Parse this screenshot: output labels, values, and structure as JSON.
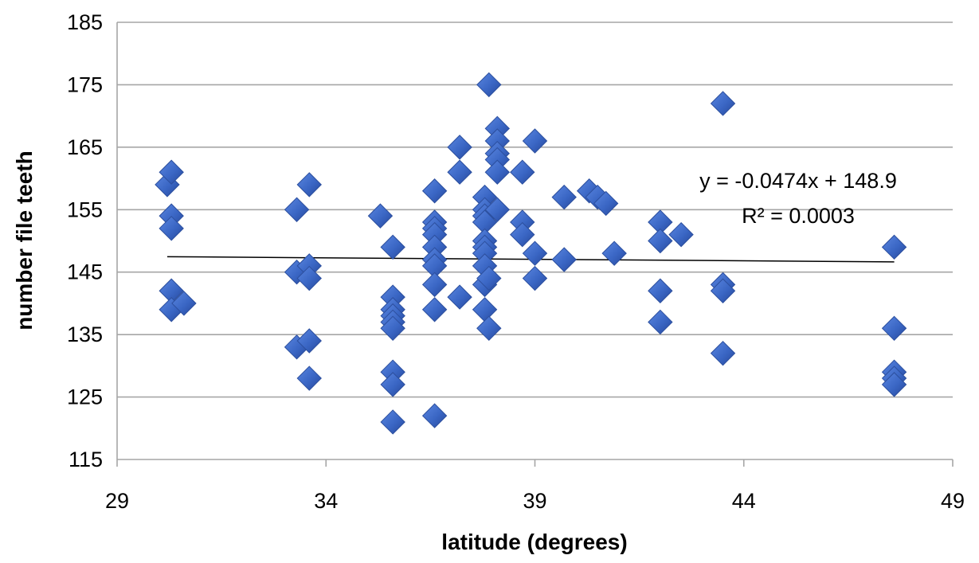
{
  "chart_data": {
    "type": "scatter",
    "title": "",
    "xlabel": "latitude (degrees)",
    "ylabel": "number file teeth",
    "xlim": [
      29,
      49
    ],
    "ylim": [
      115,
      185
    ],
    "xticks": [
      "29",
      "34",
      "39",
      "44",
      "49"
    ],
    "yticks": [
      "115",
      "125",
      "135",
      "145",
      "155",
      "165",
      "175",
      "185"
    ],
    "grid": "horizontal",
    "legend": "none",
    "marker": "diamond",
    "marker_color": "#3a66c4",
    "trendline_color": "#000000",
    "series": [
      {
        "points": [
          [
            30.2,
            159
          ],
          [
            30.3,
            161
          ],
          [
            30.3,
            154
          ],
          [
            30.3,
            152
          ],
          [
            30.3,
            142
          ],
          [
            30.3,
            139
          ],
          [
            30.6,
            140
          ],
          [
            33.3,
            155
          ],
          [
            33.3,
            145
          ],
          [
            33.3,
            133
          ],
          [
            33.6,
            159
          ],
          [
            33.6,
            146
          ],
          [
            33.6,
            144
          ],
          [
            33.6,
            134
          ],
          [
            33.6,
            128
          ],
          [
            35.3,
            154
          ],
          [
            35.6,
            149
          ],
          [
            35.6,
            141
          ],
          [
            35.6,
            139
          ],
          [
            35.6,
            138
          ],
          [
            35.6,
            137
          ],
          [
            35.6,
            136
          ],
          [
            35.6,
            129
          ],
          [
            35.6,
            127
          ],
          [
            35.6,
            121
          ],
          [
            36.6,
            158
          ],
          [
            36.6,
            153
          ],
          [
            36.6,
            152
          ],
          [
            36.6,
            151
          ],
          [
            36.6,
            149
          ],
          [
            36.6,
            147
          ],
          [
            36.6,
            146
          ],
          [
            36.6,
            143
          ],
          [
            36.6,
            139
          ],
          [
            36.6,
            122
          ],
          [
            37.2,
            165
          ],
          [
            37.2,
            161
          ],
          [
            37.2,
            141
          ],
          [
            37.8,
            157
          ],
          [
            37.8,
            155
          ],
          [
            37.8,
            154
          ],
          [
            37.8,
            153
          ],
          [
            37.8,
            150
          ],
          [
            37.8,
            149
          ],
          [
            37.8,
            148
          ],
          [
            37.8,
            146
          ],
          [
            37.8,
            143
          ],
          [
            37.8,
            139
          ],
          [
            37.9,
            175
          ],
          [
            37.9,
            144
          ],
          [
            37.9,
            136
          ],
          [
            38.1,
            168
          ],
          [
            38.1,
            166
          ],
          [
            38.1,
            164
          ],
          [
            38.1,
            163
          ],
          [
            38.1,
            161
          ],
          [
            38.1,
            155
          ],
          [
            38.7,
            161
          ],
          [
            38.7,
            153
          ],
          [
            38.7,
            151
          ],
          [
            39.0,
            166
          ],
          [
            39.0,
            148
          ],
          [
            39.0,
            144
          ],
          [
            39.7,
            157
          ],
          [
            39.7,
            147
          ],
          [
            40.3,
            158
          ],
          [
            40.5,
            157
          ],
          [
            40.7,
            156
          ],
          [
            40.9,
            148
          ],
          [
            42.0,
            153
          ],
          [
            42.0,
            150
          ],
          [
            42.0,
            142
          ],
          [
            42.0,
            137
          ],
          [
            42.5,
            151
          ],
          [
            43.5,
            172
          ],
          [
            43.5,
            143
          ],
          [
            43.5,
            142
          ],
          [
            43.5,
            132
          ],
          [
            47.6,
            149
          ],
          [
            47.6,
            136
          ],
          [
            47.6,
            129
          ],
          [
            47.6,
            128
          ],
          [
            47.6,
            127
          ]
        ]
      }
    ],
    "trendline": {
      "slope": -0.0474,
      "intercept": 148.9,
      "x_range": [
        30.2,
        47.6
      ]
    },
    "annotation": {
      "equation": "y = -0.0474x + 148.9",
      "r2": "R² = 0.0003"
    }
  }
}
